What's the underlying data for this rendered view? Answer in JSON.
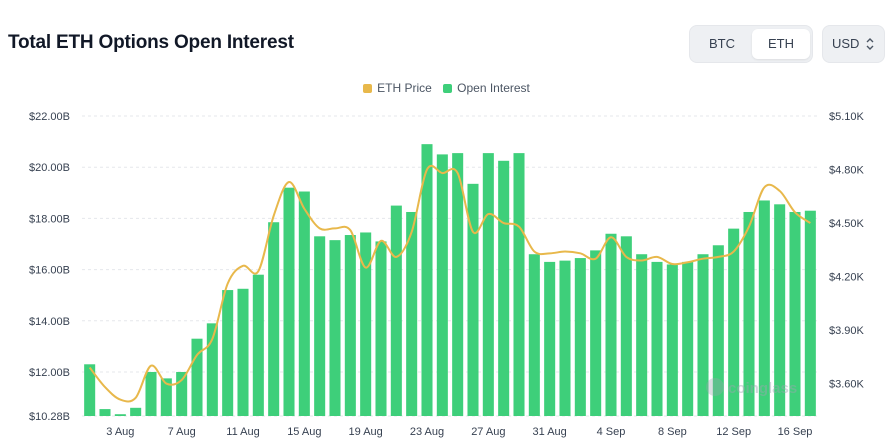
{
  "header": {
    "title": "Total ETH Options Open Interest"
  },
  "asset_toggle": {
    "options": [
      "BTC",
      "ETH"
    ],
    "selected": "ETH"
  },
  "currency_select": {
    "value": "USD"
  },
  "watermark": "coinglass",
  "colors": {
    "bar": "#3ecf7a",
    "line": "#e8b84b",
    "grid": "#e5e7eb"
  },
  "chart_data": {
    "type": "bar+line",
    "title": "Total ETH Options Open Interest",
    "legend": [
      {
        "name": "ETH Price",
        "color": "#e8b84b",
        "type": "line"
      },
      {
        "name": "Open Interest",
        "color": "#3ecf7a",
        "type": "bar"
      }
    ],
    "legend_position": "top-center",
    "categories": [
      "1 Aug",
      "2 Aug",
      "3 Aug",
      "4 Aug",
      "5 Aug",
      "6 Aug",
      "7 Aug",
      "8 Aug",
      "9 Aug",
      "10 Aug",
      "11 Aug",
      "12 Aug",
      "13 Aug",
      "14 Aug",
      "15 Aug",
      "16 Aug",
      "17 Aug",
      "18 Aug",
      "19 Aug",
      "20 Aug",
      "21 Aug",
      "22 Aug",
      "23 Aug",
      "24 Aug",
      "25 Aug",
      "26 Aug",
      "27 Aug",
      "28 Aug",
      "29 Aug",
      "30 Aug",
      "31 Aug",
      "1 Sep",
      "2 Sep",
      "3 Sep",
      "4 Sep",
      "5 Sep",
      "6 Sep",
      "7 Sep",
      "8 Sep",
      "9 Sep",
      "10 Sep",
      "11 Sep",
      "12 Sep",
      "13 Sep",
      "14 Sep",
      "15 Sep",
      "16 Sep",
      "17 Sep"
    ],
    "x_tick_labels": [
      "3 Aug",
      "7 Aug",
      "11 Aug",
      "15 Aug",
      "19 Aug",
      "23 Aug",
      "27 Aug",
      "31 Aug",
      "4 Sep",
      "8 Sep",
      "12 Sep",
      "16 Sep"
    ],
    "x_tick_indices": [
      2,
      6,
      10,
      14,
      18,
      22,
      26,
      30,
      34,
      38,
      42,
      46
    ],
    "series": [
      {
        "name": "Open Interest",
        "axis": "left",
        "unit": "USD",
        "values": [
          12.3,
          10.55,
          10.35,
          10.6,
          12.0,
          11.75,
          12.0,
          13.3,
          13.9,
          15.2,
          15.25,
          15.8,
          17.85,
          19.2,
          19.05,
          17.3,
          17.15,
          17.35,
          17.45,
          17.1,
          18.5,
          18.25,
          20.9,
          20.5,
          20.55,
          19.35,
          20.55,
          20.25,
          20.55,
          16.6,
          16.3,
          16.35,
          16.45,
          16.75,
          17.4,
          17.3,
          16.6,
          16.3,
          16.2,
          16.3,
          16.6,
          16.95,
          17.6,
          18.25,
          18.7,
          18.55,
          18.25,
          18.3
        ]
      },
      {
        "name": "ETH Price",
        "axis": "right",
        "unit": "USD",
        "values": [
          3690,
          3580,
          3510,
          3520,
          3700,
          3600,
          3620,
          3760,
          3850,
          4160,
          4260,
          4230,
          4540,
          4730,
          4580,
          4470,
          4470,
          4460,
          4250,
          4400,
          4310,
          4450,
          4800,
          4780,
          4780,
          4450,
          4550,
          4500,
          4480,
          4340,
          4330,
          4340,
          4330,
          4300,
          4420,
          4310,
          4290,
          4310,
          4270,
          4280,
          4300,
          4310,
          4340,
          4480,
          4700,
          4680,
          4560,
          4500
        ]
      }
    ],
    "y_left": {
      "ticks": [
        "$10.28B",
        "$12.00B",
        "$14.00B",
        "$16.00B",
        "$18.00B",
        "$20.00B",
        "$22.00B"
      ],
      "tick_values": [
        10.28,
        12,
        14,
        16,
        18,
        20,
        22
      ],
      "min": 10.28,
      "max": 22.0
    },
    "y_right": {
      "ticks": [
        "$3.60K",
        "$3.90K",
        "$4.20K",
        "$4.50K",
        "$4.80K",
        "$5.10K"
      ],
      "tick_values": [
        3600,
        3900,
        4200,
        4500,
        4800,
        5100
      ],
      "min": 3418,
      "max": 5100
    },
    "grid": true
  }
}
